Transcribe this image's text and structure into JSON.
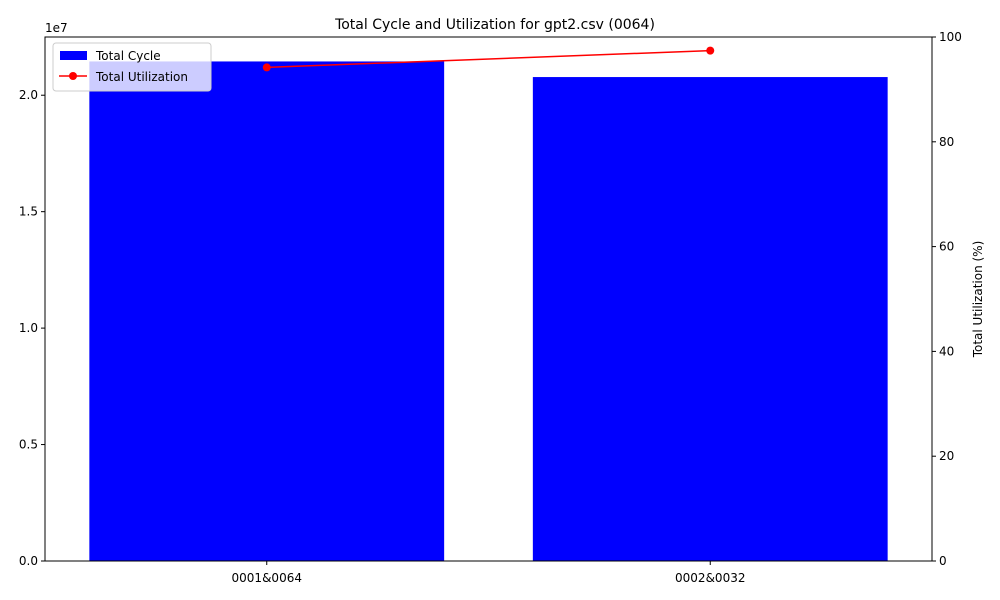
{
  "chart_data": {
    "type": "bar",
    "title": "Total Cycle and Utilization for gpt2.csv (0064)",
    "categories": [
      "0001&0064",
      "0002&0032"
    ],
    "series": [
      {
        "name": "Total Cycle",
        "type": "bar",
        "axis": "left",
        "color": "#0000ff",
        "values": [
          21450000,
          20780000
        ]
      },
      {
        "name": "Total Utilization",
        "type": "line",
        "axis": "right",
        "color": "#ff0000",
        "marker": "circle",
        "values": [
          94.2,
          97.4
        ]
      }
    ],
    "y_left": {
      "label": "",
      "exponent_label": "1e7",
      "ylim": [
        0,
        22500000
      ],
      "ticks": [
        0,
        5000000,
        10000000,
        15000000,
        20000000
      ],
      "tick_labels": [
        "0.0",
        "0.5",
        "1.0",
        "1.5",
        "2.0"
      ]
    },
    "y_right": {
      "label": "Total Utilization (%)",
      "ylim": [
        0,
        100
      ],
      "ticks": [
        0,
        20,
        40,
        60,
        80,
        100
      ],
      "tick_labels": [
        "0",
        "20",
        "40",
        "60",
        "80",
        "100"
      ]
    },
    "grid": false,
    "legend": {
      "position": "top-left",
      "entries": [
        "Total Cycle",
        "Total Utilization"
      ]
    }
  }
}
